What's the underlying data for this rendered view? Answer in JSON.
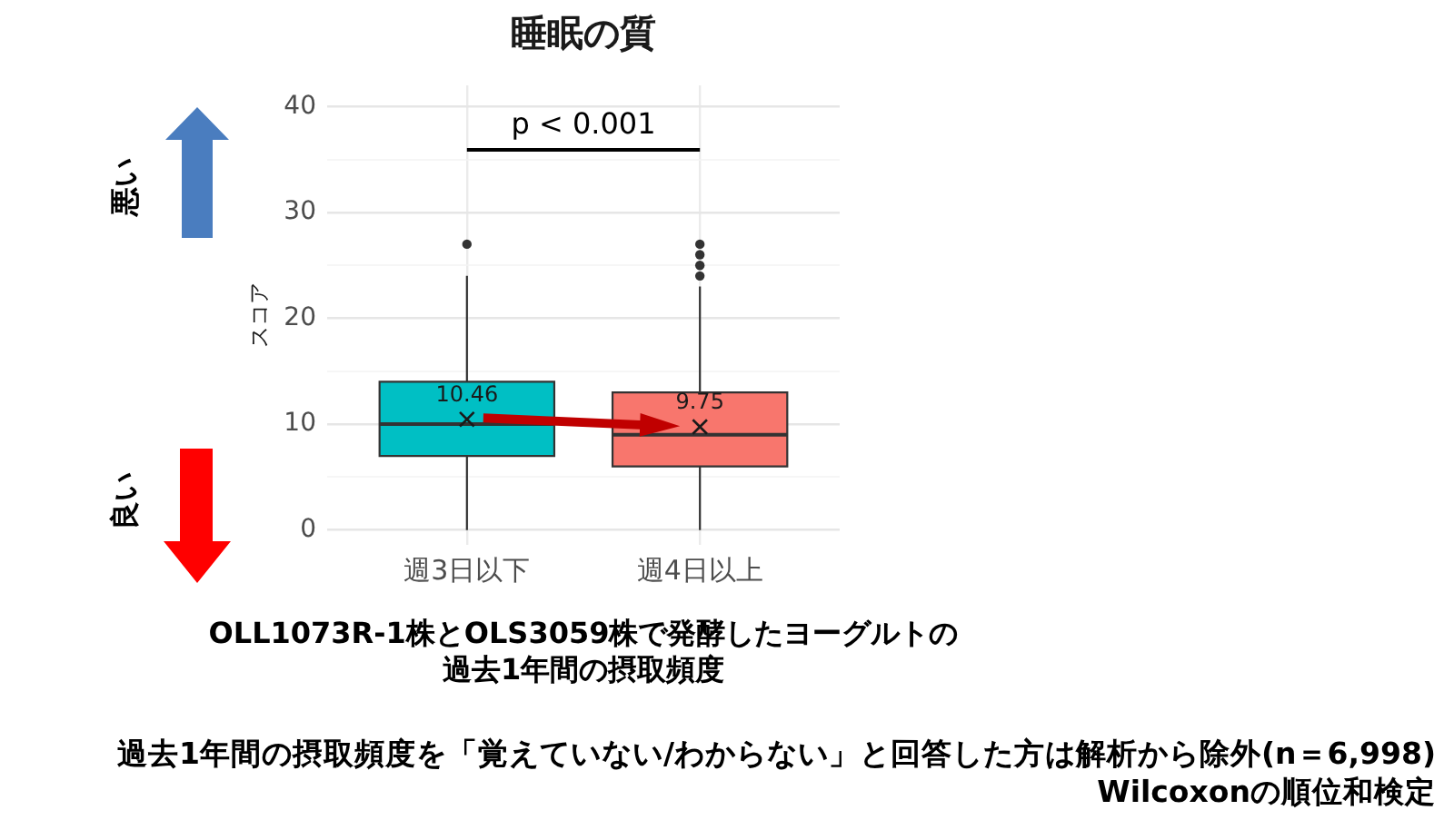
{
  "chart_data": {
    "type": "box",
    "title": "睡眠の質",
    "xlabel": "OLL1073R-1株とOLS3059株で発酵したヨーグルトの過去1年間の摂取頻度",
    "ylabel": "スコア",
    "categories": [
      "週3日以下",
      "週4日以上"
    ],
    "series": [
      {
        "type": "box",
        "colors": [
          "#00bfc4",
          "#f8766d"
        ],
        "boxes": [
          {
            "low": 0,
            "q1": 7,
            "median": 10,
            "q3": 14,
            "high": 24,
            "outliers": [
              27
            ]
          },
          {
            "low": 0,
            "q1": 6,
            "median": 9,
            "q3": 13,
            "high": 23,
            "outliers": [
              24,
              25,
              26,
              27
            ]
          }
        ]
      },
      {
        "type": "scatter",
        "x": [
          "週3日以下",
          "週4日以上"
        ],
        "values": [
          10.46,
          9.75
        ],
        "color": "#1a1a1a",
        "marker": "cross",
        "value_labels": [
          "10.46",
          "9.75"
        ]
      }
    ],
    "ylim": [
      -1.4,
      42
    ],
    "yticks": [
      0,
      {
        "value": 5,
        "label": null
      },
      10,
      {
        "value": 15,
        "label": null
      },
      20,
      {
        "value": 25,
        "label": null
      },
      30,
      {
        "value": 35,
        "label": null
      },
      40
    ],
    "grid": true,
    "annotations": [
      "p < 0.001",
      "悪い",
      "良い",
      "過去1年間の摂取頻度を「覚えていない/わからない」と回答した方は解析から除外(n＝6,998)",
      "Wilcoxonの順位和検定"
    ]
  }
}
